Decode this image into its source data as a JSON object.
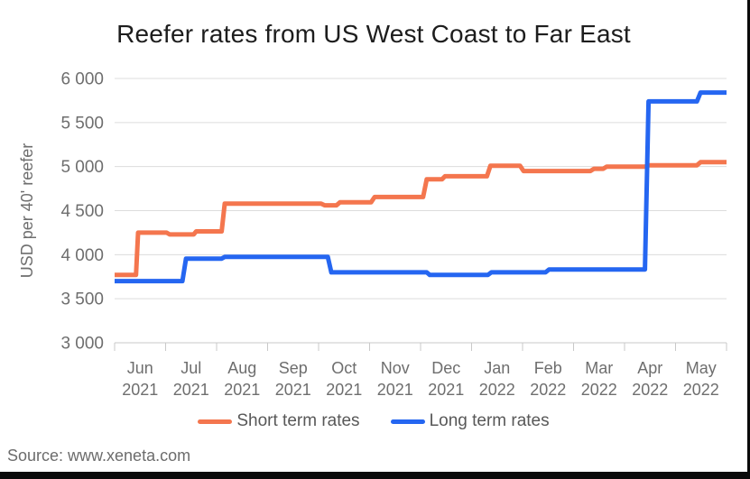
{
  "title": "Reefer rates from US West Coast to Far East",
  "source": "Source: www.xeneta.com",
  "y_axis": {
    "title": "USD per 40' reefer",
    "ticks": [
      "6 000",
      "5 500",
      "5 000",
      "4 500",
      "4 000",
      "3 500",
      "3 000"
    ],
    "tick_values": [
      6000,
      5500,
      5000,
      4500,
      4000,
      3500,
      3000
    ]
  },
  "x_axis": {
    "categories": [
      {
        "month": "Jun",
        "year": "2021"
      },
      {
        "month": "Jul",
        "year": "2021"
      },
      {
        "month": "Aug",
        "year": "2021"
      },
      {
        "month": "Sep",
        "year": "2021"
      },
      {
        "month": "Oct",
        "year": "2021"
      },
      {
        "month": "Nov",
        "year": "2021"
      },
      {
        "month": "Dec",
        "year": "2021"
      },
      {
        "month": "Jan",
        "year": "2022"
      },
      {
        "month": "Feb",
        "year": "2022"
      },
      {
        "month": "Mar",
        "year": "2022"
      },
      {
        "month": "Apr",
        "year": "2022"
      },
      {
        "month": "May",
        "year": "2022"
      }
    ]
  },
  "legend": [
    {
      "label": "Short term rates",
      "color": "#F4764E"
    },
    {
      "label": "Long term rates",
      "color": "#2566F1"
    }
  ],
  "colors": {
    "short_term": "#F4764E",
    "long_term": "#2566F1",
    "title_text": "#1d1d1d",
    "axis_text": "#6e6e6e",
    "legend_text": "#585858",
    "source_text": "#6c6c6c",
    "gridline": "#dcdcdc",
    "axis_line": "#c9c9c9",
    "border": "#0a0a0a"
  },
  "chart_data": {
    "type": "line",
    "title": "Reefer rates from US West Coast to Far East",
    "xlabel": "",
    "ylabel": "USD per 40' reefer",
    "ylim": [
      3000,
      6000
    ],
    "y_tick_step": 500,
    "grid": true,
    "legend_position": "bottom",
    "categories": [
      "Jun 2021",
      "Jul 2021",
      "Aug 2021",
      "Sep 2021",
      "Oct 2021",
      "Nov 2021",
      "Dec 2021",
      "Jan 2022",
      "Feb 2022",
      "Mar 2022",
      "Apr 2022",
      "May 2022"
    ],
    "x_note": "step_points x values are months elapsed since 1 Jun 2021 (0 = start Jun 2021, 12 = end May 2022); y values are USD per 40' reefer",
    "series": [
      {
        "name": "Short term rates",
        "color": "#F4764E",
        "step_points": [
          [
            0,
            3770
          ],
          [
            0.42,
            3770
          ],
          [
            0.46,
            4250
          ],
          [
            1.02,
            4250
          ],
          [
            1.08,
            4230
          ],
          [
            1.55,
            4230
          ],
          [
            1.6,
            4265
          ],
          [
            2.1,
            4265
          ],
          [
            2.16,
            4580
          ],
          [
            4.05,
            4580
          ],
          [
            4.12,
            4560
          ],
          [
            4.35,
            4560
          ],
          [
            4.42,
            4595
          ],
          [
            5.03,
            4595
          ],
          [
            5.1,
            4655
          ],
          [
            6.05,
            4655
          ],
          [
            6.12,
            4855
          ],
          [
            6.42,
            4855
          ],
          [
            6.48,
            4890
          ],
          [
            7.3,
            4890
          ],
          [
            7.37,
            5010
          ],
          [
            7.95,
            5010
          ],
          [
            8.02,
            4950
          ],
          [
            9.33,
            4950
          ],
          [
            9.4,
            4975
          ],
          [
            9.58,
            4975
          ],
          [
            9.65,
            5000
          ],
          [
            10.4,
            5000
          ],
          [
            10.47,
            5015
          ],
          [
            11.42,
            5015
          ],
          [
            11.49,
            5050
          ],
          [
            12,
            5050
          ]
        ]
      },
      {
        "name": "Long term rates",
        "color": "#2566F1",
        "step_points": [
          [
            0,
            3700
          ],
          [
            1.33,
            3700
          ],
          [
            1.4,
            3955
          ],
          [
            2.1,
            3955
          ],
          [
            2.16,
            3975
          ],
          [
            4.18,
            3975
          ],
          [
            4.25,
            3800
          ],
          [
            6.12,
            3800
          ],
          [
            6.18,
            3770
          ],
          [
            7.32,
            3770
          ],
          [
            7.39,
            3800
          ],
          [
            8.45,
            3800
          ],
          [
            8.52,
            3832
          ],
          [
            10.4,
            3832
          ],
          [
            10.47,
            5740
          ],
          [
            11.42,
            5740
          ],
          [
            11.49,
            5840
          ],
          [
            12,
            5840
          ]
        ]
      }
    ]
  }
}
